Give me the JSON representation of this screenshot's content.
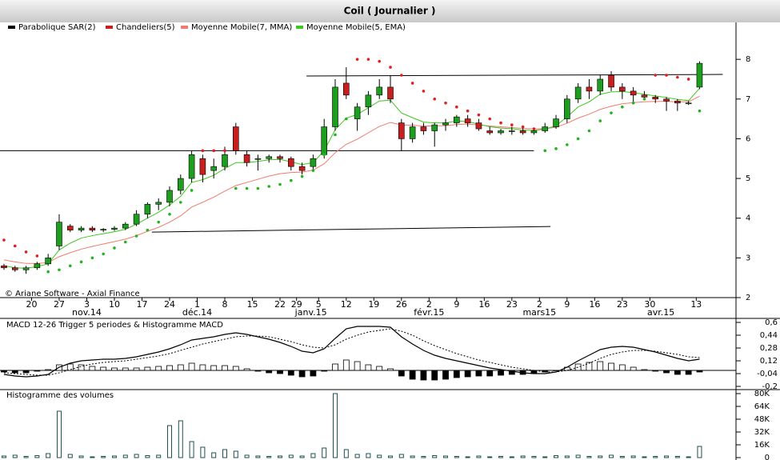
{
  "title": "Coil  ( Journalier )",
  "copyright": "© Ariane Software - Axial Finance",
  "chart_data": [
    {
      "type": "candlestick",
      "xlim": [
        -0.36,
        66.3
      ],
      "ylim": [
        2,
        8.93
      ],
      "yticks": [
        2,
        3,
        4,
        5,
        6,
        7,
        8
      ],
      "xticks": [
        {
          "value": 2.5,
          "label": "20"
        },
        {
          "value": 5,
          "label": "27"
        },
        {
          "value": 7.5,
          "label": "3"
        },
        {
          "value": 10,
          "label": "10"
        },
        {
          "value": 12.5,
          "label": "17"
        },
        {
          "value": 15,
          "label": "24"
        },
        {
          "value": 17.5,
          "label": "1"
        },
        {
          "value": 20,
          "label": "8"
        },
        {
          "value": 22.5,
          "label": "15"
        },
        {
          "value": 25,
          "label": "22"
        },
        {
          "value": 26.5,
          "label": "29"
        },
        {
          "value": 28.5,
          "label": "5"
        },
        {
          "value": 31,
          "label": "12"
        },
        {
          "value": 33.5,
          "label": "19"
        },
        {
          "value": 36,
          "label": "26"
        },
        {
          "value": 38.5,
          "label": "2"
        },
        {
          "value": 41,
          "label": "9"
        },
        {
          "value": 43.5,
          "label": "16"
        },
        {
          "value": 46,
          "label": "23"
        },
        {
          "value": 48.5,
          "label": "2"
        },
        {
          "value": 51,
          "label": "9"
        },
        {
          "value": 53.5,
          "label": "16"
        },
        {
          "value": 56,
          "label": "23"
        },
        {
          "value": 58.5,
          "label": "30"
        },
        {
          "value": 62.7,
          "label": "13"
        }
      ],
      "month_ticks": [
        {
          "value": 7.5,
          "label": "nov.14"
        },
        {
          "value": 17.5,
          "label": "déc.14"
        },
        {
          "value": 27.8,
          "label": "janv.15"
        },
        {
          "value": 38.5,
          "label": "févr.15"
        },
        {
          "value": 48.5,
          "label": "mars15"
        },
        {
          "value": 59.5,
          "label": "avr.15"
        }
      ],
      "sar": {
        "name": "Parabolique SAR(2)",
        "color": "#000000",
        "up_color": "#22b41e",
        "down_color": "#e01e1e",
        "values": [
          3.45,
          3.3,
          3.15,
          3.05,
          2.65,
          2.7,
          2.8,
          2.9,
          3.0,
          3.1,
          3.25,
          3.4,
          3.55,
          3.7,
          3.9,
          4.1,
          4.4,
          4.7,
          5.7,
          5.7,
          5.7,
          4.75,
          4.75,
          4.75,
          4.8,
          4.85,
          4.95,
          5.05,
          5.2,
          5.6,
          6.1,
          6.5,
          8.0,
          8.0,
          7.95,
          7.8,
          7.6,
          7.4,
          7.2,
          7.0,
          6.9,
          6.8,
          6.7,
          6.6,
          6.5,
          6.4,
          6.35,
          6.3,
          6.25,
          5.7,
          5.75,
          5.85,
          6.0,
          6.2,
          6.45,
          6.65,
          6.8,
          6.9,
          7.0,
          7.6,
          7.6,
          7.55,
          7.5,
          6.7
        ]
      },
      "candles": {
        "name": "Chandeliers(5)",
        "color": "#c81e1e",
        "up_color": "#1e9e1e",
        "down_color": "#c81e1e",
        "open": [
          2.8,
          2.75,
          2.7,
          2.75,
          2.85,
          3.3,
          3.8,
          3.7,
          3.75,
          3.7,
          3.72,
          3.75,
          3.85,
          4.1,
          4.35,
          4.4,
          4.7,
          5.0,
          5.5,
          5.2,
          5.3,
          6.3,
          5.6,
          5.5,
          5.5,
          5.55,
          5.5,
          5.3,
          5.3,
          5.6,
          6.3,
          7.4,
          6.5,
          6.8,
          7.1,
          7.3,
          6.4,
          6.0,
          6.3,
          6.2,
          6.35,
          6.4,
          6.5,
          6.4,
          6.2,
          6.15,
          6.2,
          6.2,
          6.15,
          6.2,
          6.3,
          6.5,
          7.0,
          7.3,
          7.2,
          7.6,
          7.3,
          7.2,
          7.1,
          7.05,
          7.0,
          6.95,
          6.9,
          7.3
        ],
        "high": [
          2.85,
          2.8,
          2.8,
          2.9,
          3.1,
          4.1,
          3.85,
          3.8,
          3.8,
          3.75,
          3.8,
          3.9,
          4.2,
          4.4,
          4.5,
          4.8,
          5.1,
          5.7,
          5.6,
          5.5,
          5.8,
          6.4,
          5.7,
          5.6,
          5.6,
          5.6,
          5.55,
          5.4,
          5.6,
          6.5,
          7.5,
          7.8,
          6.9,
          7.2,
          7.5,
          7.6,
          6.5,
          6.4,
          6.4,
          6.4,
          6.5,
          6.6,
          6.6,
          6.5,
          6.3,
          6.25,
          6.3,
          6.3,
          6.25,
          6.4,
          6.6,
          7.1,
          7.4,
          7.5,
          7.6,
          7.7,
          7.4,
          7.3,
          7.2,
          7.1,
          7.05,
          7.0,
          6.95,
          7.95
        ],
        "low": [
          2.7,
          2.65,
          2.6,
          2.7,
          2.8,
          3.2,
          3.65,
          3.65,
          3.65,
          3.65,
          3.68,
          3.7,
          3.8,
          4.0,
          4.2,
          4.3,
          4.6,
          4.9,
          4.9,
          5.0,
          5.2,
          5.6,
          5.3,
          5.2,
          5.4,
          5.4,
          5.2,
          5.1,
          5.2,
          5.5,
          6.2,
          7.0,
          6.2,
          6.6,
          7.0,
          6.9,
          5.7,
          5.9,
          6.1,
          5.8,
          6.2,
          6.3,
          6.3,
          6.2,
          6.1,
          6.1,
          6.1,
          6.1,
          6.1,
          6.15,
          6.25,
          6.4,
          6.9,
          7.0,
          7.1,
          7.2,
          7.0,
          6.9,
          7.0,
          6.9,
          6.7,
          6.7,
          6.85,
          7.25
        ],
        "close": [
          2.75,
          2.7,
          2.75,
          2.85,
          3.0,
          3.9,
          3.7,
          3.75,
          3.7,
          3.72,
          3.75,
          3.85,
          4.1,
          4.35,
          4.4,
          4.7,
          5.0,
          5.6,
          5.1,
          5.3,
          5.6,
          5.7,
          5.4,
          5.5,
          5.55,
          5.5,
          5.3,
          5.2,
          5.5,
          6.3,
          7.3,
          7.1,
          6.8,
          7.1,
          7.3,
          7.0,
          6.0,
          6.3,
          6.2,
          6.35,
          6.4,
          6.55,
          6.4,
          6.25,
          6.15,
          6.2,
          6.2,
          6.15,
          6.2,
          6.3,
          6.5,
          7.0,
          7.3,
          7.2,
          7.5,
          7.3,
          7.2,
          7.1,
          7.05,
          7.0,
          6.95,
          6.9,
          6.9,
          7.9
        ]
      },
      "series": [
        {
          "name": "Moyenne Mobile(7, MMA)",
          "color": "#f07a6e",
          "values": [
            2.95,
            2.9,
            2.86,
            2.86,
            2.88,
            3.03,
            3.13,
            3.22,
            3.29,
            3.35,
            3.41,
            3.47,
            3.56,
            3.67,
            3.77,
            3.9,
            4.06,
            4.28,
            4.4,
            4.53,
            4.68,
            4.82,
            4.9,
            4.98,
            5.06,
            5.12,
            5.15,
            5.16,
            5.21,
            5.37,
            5.65,
            5.86,
            5.99,
            6.15,
            6.31,
            6.41,
            6.35,
            6.34,
            6.32,
            6.32,
            6.33,
            6.36,
            6.37,
            6.35,
            6.32,
            6.3,
            6.28,
            6.26,
            6.25,
            6.25,
            6.29,
            6.39,
            6.52,
            6.62,
            6.74,
            6.82,
            6.88,
            6.91,
            6.93,
            6.94,
            6.94,
            6.93,
            6.93,
            7.07
          ]
        },
        {
          "name": "Moyenne Mobile(5, EMA)",
          "color": "#3cc81e",
          "values": [
            2.8,
            2.75,
            2.74,
            2.78,
            2.85,
            3.2,
            3.37,
            3.5,
            3.56,
            3.61,
            3.66,
            3.72,
            3.85,
            4.0,
            4.15,
            4.33,
            4.55,
            4.9,
            4.97,
            5.08,
            5.25,
            5.4,
            5.4,
            5.43,
            5.47,
            5.48,
            5.42,
            5.35,
            5.4,
            5.7,
            6.23,
            6.52,
            6.61,
            6.78,
            6.95,
            6.97,
            6.65,
            6.53,
            6.42,
            6.4,
            6.4,
            6.45,
            6.43,
            6.37,
            6.3,
            6.27,
            6.25,
            6.22,
            6.21,
            6.24,
            6.33,
            6.55,
            6.8,
            6.93,
            7.12,
            7.18,
            7.19,
            7.16,
            7.12,
            7.08,
            7.04,
            6.99,
            6.96,
            7.27
          ]
        }
      ],
      "trendlines": [
        {
          "x": [
            -0.36,
            48.0
          ],
          "y": [
            5.7,
            5.7
          ]
        },
        {
          "x": [
            13.4,
            49.5
          ],
          "y": [
            3.65,
            3.79
          ]
        },
        {
          "x": [
            27.4,
            65.1
          ],
          "y": [
            7.58,
            7.62
          ]
        }
      ]
    },
    {
      "type": "macd",
      "title": "MACD 12-26   Trigger 5 periodes & Histogramme MACD",
      "xlim": [
        -0.36,
        66.3
      ],
      "ylim": [
        -0.23,
        0.65
      ],
      "yticks": [
        {
          "value": 0.6,
          "label": "0,6"
        },
        {
          "value": 0.44,
          "label": "0,44"
        },
        {
          "value": 0.28,
          "label": "0,28"
        },
        {
          "value": 0.12,
          "label": "0,12"
        },
        {
          "value": -0.04,
          "label": "-0,04"
        },
        {
          "value": -0.2,
          "label": "-0,2"
        }
      ],
      "macd": [
        -0.05,
        -0.07,
        -0.08,
        -0.07,
        -0.05,
        0.04,
        0.09,
        0.12,
        0.13,
        0.14,
        0.14,
        0.15,
        0.17,
        0.2,
        0.23,
        0.27,
        0.32,
        0.38,
        0.4,
        0.42,
        0.45,
        0.47,
        0.45,
        0.42,
        0.39,
        0.35,
        0.3,
        0.24,
        0.22,
        0.27,
        0.4,
        0.52,
        0.55,
        0.55,
        0.55,
        0.54,
        0.42,
        0.33,
        0.25,
        0.19,
        0.15,
        0.12,
        0.09,
        0.06,
        0.03,
        0.01,
        -0.01,
        -0.03,
        -0.04,
        -0.04,
        -0.02,
        0.04,
        0.12,
        0.19,
        0.26,
        0.29,
        0.3,
        0.29,
        0.26,
        0.23,
        0.19,
        0.15,
        0.12,
        0.14
      ],
      "signal": [
        -0.03,
        -0.04,
        -0.05,
        -0.06,
        -0.06,
        -0.03,
        0.01,
        0.05,
        0.08,
        0.1,
        0.11,
        0.12,
        0.14,
        0.16,
        0.18,
        0.21,
        0.25,
        0.29,
        0.33,
        0.36,
        0.39,
        0.42,
        0.43,
        0.43,
        0.42,
        0.39,
        0.36,
        0.32,
        0.29,
        0.28,
        0.32,
        0.39,
        0.44,
        0.48,
        0.5,
        0.52,
        0.49,
        0.44,
        0.37,
        0.31,
        0.26,
        0.21,
        0.17,
        0.13,
        0.1,
        0.07,
        0.04,
        0.02,
        0.0,
        -0.02,
        -0.02,
        0.0,
        0.04,
        0.09,
        0.15,
        0.2,
        0.23,
        0.25,
        0.25,
        0.24,
        0.22,
        0.2,
        0.17,
        0.16
      ],
      "histogram": [
        -0.02,
        -0.03,
        -0.03,
        -0.01,
        0.01,
        0.07,
        0.08,
        0.07,
        0.05,
        0.04,
        0.03,
        0.03,
        0.03,
        0.04,
        0.05,
        0.06,
        0.07,
        0.09,
        0.07,
        0.06,
        0.06,
        0.05,
        0.02,
        -0.01,
        -0.03,
        -0.04,
        -0.06,
        -0.08,
        -0.07,
        -0.01,
        0.08,
        0.13,
        0.11,
        0.07,
        0.05,
        0.02,
        -0.07,
        -0.11,
        -0.12,
        -0.12,
        -0.11,
        -0.09,
        -0.08,
        -0.07,
        -0.07,
        -0.06,
        -0.05,
        -0.05,
        -0.04,
        -0.02,
        0.0,
        0.04,
        0.08,
        0.1,
        0.11,
        0.09,
        0.07,
        0.04,
        0.01,
        -0.01,
        -0.03,
        -0.05,
        -0.05,
        -0.02
      ]
    },
    {
      "type": "bar",
      "title": "Histogramme des volumes",
      "color": "#1e5050",
      "xlim": [
        -0.36,
        66.3
      ],
      "ylim": [
        0,
        80000
      ],
      "yticks": [
        0,
        {
          "value": 16000,
          "label": "16K"
        },
        {
          "value": 32000,
          "label": "32K"
        },
        {
          "value": 48000,
          "label": "48K"
        },
        {
          "value": 64000,
          "label": "64K"
        },
        {
          "value": 80000,
          "label": "80K"
        }
      ],
      "values": [
        2000,
        3000,
        1500,
        2500,
        5000,
        58000,
        4000,
        2000,
        1000,
        1500,
        2000,
        3000,
        4000,
        2500,
        3000,
        40000,
        46000,
        20000,
        13000,
        6000,
        10000,
        8000,
        3000,
        2000,
        1500,
        2000,
        3000,
        2000,
        5000,
        12000,
        80000,
        10000,
        4000,
        5000,
        3000,
        2000,
        4000,
        2000,
        1500,
        2500,
        2000,
        1500,
        1000,
        2000,
        1000,
        1500,
        1000,
        2000,
        1500,
        1000,
        2500,
        2000,
        3000,
        1500,
        2000,
        3000,
        1500,
        2000,
        1000,
        1500,
        2000,
        1500,
        1000,
        14000
      ]
    }
  ]
}
